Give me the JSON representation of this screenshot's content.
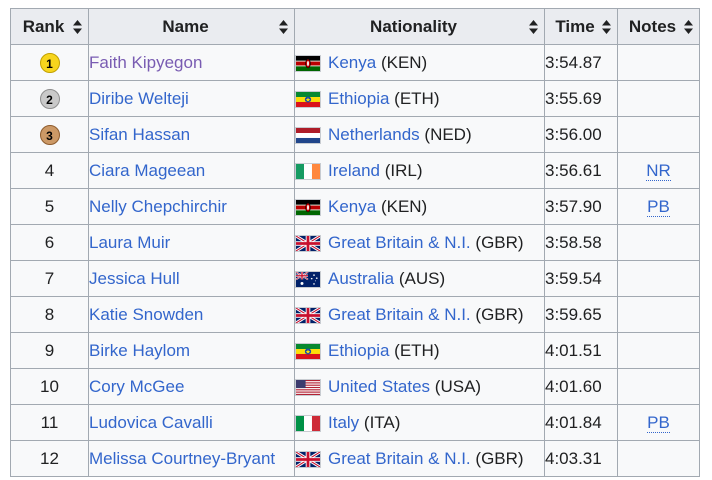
{
  "headers": {
    "rank": "Rank",
    "name": "Name",
    "nationality": "Nationality",
    "time": "Time",
    "notes": "Notes"
  },
  "rows": [
    {
      "rank": "1",
      "medal": "gold",
      "name": "Faith Kipyegon",
      "visited": true,
      "country": "Kenya",
      "code": "(KEN)",
      "flag": "kenya-flag",
      "time": "3:54.87",
      "notes": ""
    },
    {
      "rank": "2",
      "medal": "silver",
      "name": "Diribe Welteji",
      "visited": false,
      "country": "Ethiopia",
      "code": "(ETH)",
      "flag": "ethiopia-flag",
      "time": "3:55.69",
      "notes": ""
    },
    {
      "rank": "3",
      "medal": "bronze",
      "name": "Sifan Hassan",
      "visited": false,
      "country": "Netherlands",
      "code": "(NED)",
      "flag": "netherlands-flag",
      "time": "3:56.00",
      "notes": ""
    },
    {
      "rank": "4",
      "medal": "",
      "name": "Ciara Mageean",
      "visited": false,
      "country": "Ireland",
      "code": "(IRL)",
      "flag": "ireland-flag",
      "time": "3:56.61",
      "notes": "NR"
    },
    {
      "rank": "5",
      "medal": "",
      "name": "Nelly Chepchirchir",
      "visited": false,
      "country": "Kenya",
      "code": "(KEN)",
      "flag": "kenya-flag",
      "time": "3:57.90",
      "notes": "PB"
    },
    {
      "rank": "6",
      "medal": "",
      "name": "Laura Muir",
      "visited": false,
      "country": "Great Britain & N.I.",
      "code": "(GBR)",
      "flag": "uk-flag",
      "time": "3:58.58",
      "notes": ""
    },
    {
      "rank": "7",
      "medal": "",
      "name": "Jessica Hull",
      "visited": false,
      "country": "Australia",
      "code": "(AUS)",
      "flag": "australia-flag",
      "time": "3:59.54",
      "notes": ""
    },
    {
      "rank": "8",
      "medal": "",
      "name": "Katie Snowden",
      "visited": false,
      "country": "Great Britain & N.I.",
      "code": "(GBR)",
      "flag": "uk-flag",
      "time": "3:59.65",
      "notes": ""
    },
    {
      "rank": "9",
      "medal": "",
      "name": "Birke Haylom",
      "visited": false,
      "country": "Ethiopia",
      "code": "(ETH)",
      "flag": "ethiopia-flag",
      "time": "4:01.51",
      "notes": ""
    },
    {
      "rank": "10",
      "medal": "",
      "name": "Cory McGee",
      "visited": false,
      "country": "United States",
      "code": "(USA)",
      "flag": "usa-flag",
      "time": "4:01.60",
      "notes": ""
    },
    {
      "rank": "11",
      "medal": "",
      "name": "Ludovica Cavalli",
      "visited": false,
      "country": "Italy",
      "code": "(ITA)",
      "flag": "italy-flag",
      "time": "4:01.84",
      "notes": "PB"
    },
    {
      "rank": "12",
      "medal": "",
      "name": "Melissa Courtney-Bryant",
      "visited": false,
      "country": "Great Britain & N.I.",
      "code": "(GBR)",
      "flag": "uk-flag",
      "time": "4:03.31",
      "notes": ""
    }
  ],
  "colors": {
    "link": "#3366cc",
    "visited_link": "#795cb2",
    "header_bg": "#eaecf0",
    "cell_bg": "#f8f9fa",
    "border": "#a2a9b1",
    "gold": "#f7d51d",
    "silver": "#c9c9c9",
    "bronze": "#cc9966"
  }
}
